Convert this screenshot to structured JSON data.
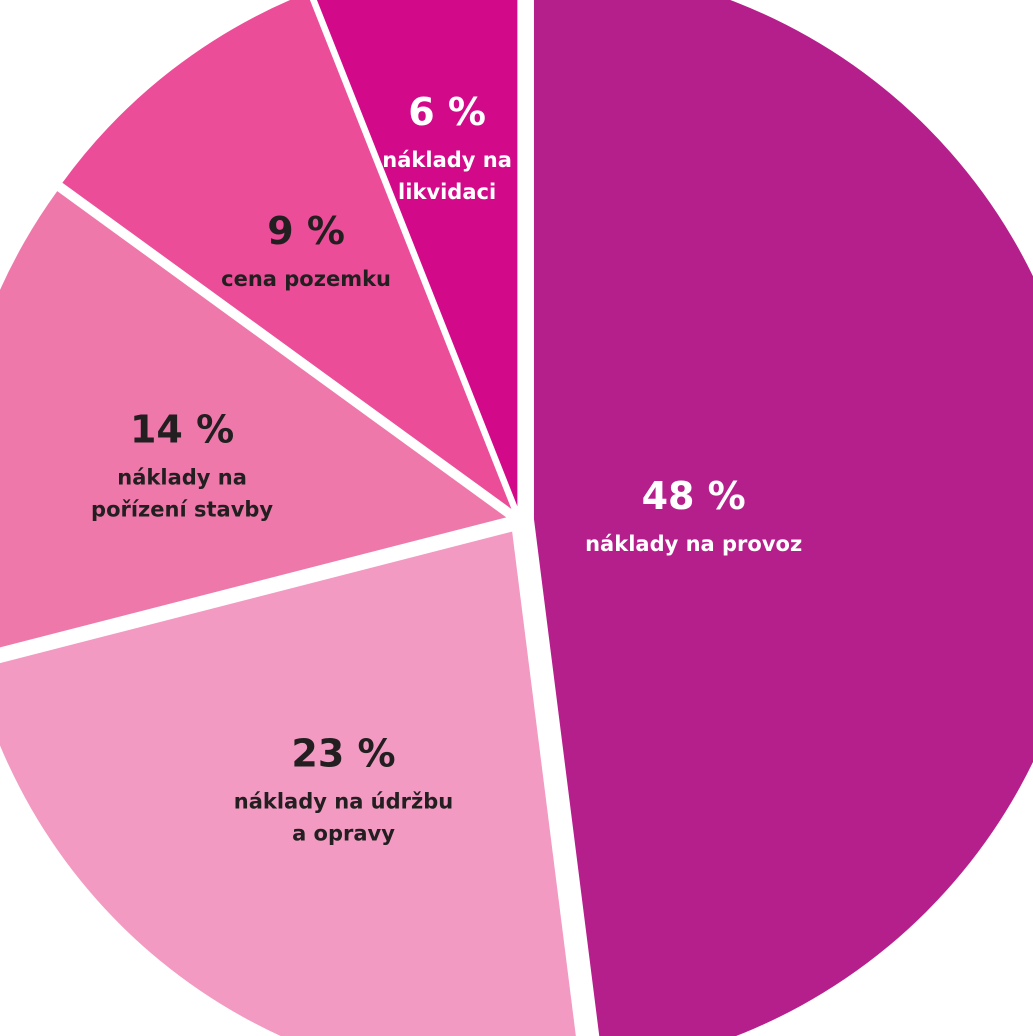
{
  "chart_data": {
    "type": "pie",
    "title": "",
    "slices": [
      {
        "value": 48,
        "percent_label": "48 %",
        "label_lines": [
          "náklady na provoz"
        ],
        "color": "#b51f8c",
        "text_color": "#ffffff"
      },
      {
        "value": 23,
        "percent_label": "23 %",
        "label_lines": [
          "náklady na údržbu",
          "a opravy"
        ],
        "color": "#f29ac2",
        "text_color": "#231f20"
      },
      {
        "value": 14,
        "percent_label": "14 %",
        "label_lines": [
          "náklady na",
          "pořízení stavby"
        ],
        "color": "#ef78ab",
        "text_color": "#231f20"
      },
      {
        "value": 9,
        "percent_label": "9 %",
        "label_lines": [
          "cena pozemku"
        ],
        "color": "#ec4d98",
        "text_color": "#231f20"
      },
      {
        "value": 6,
        "percent_label": "6 %",
        "label_lines": [
          "náklady na",
          "likvidaci"
        ],
        "color": "#d20a8a",
        "text_color": "#ffffff"
      }
    ]
  }
}
